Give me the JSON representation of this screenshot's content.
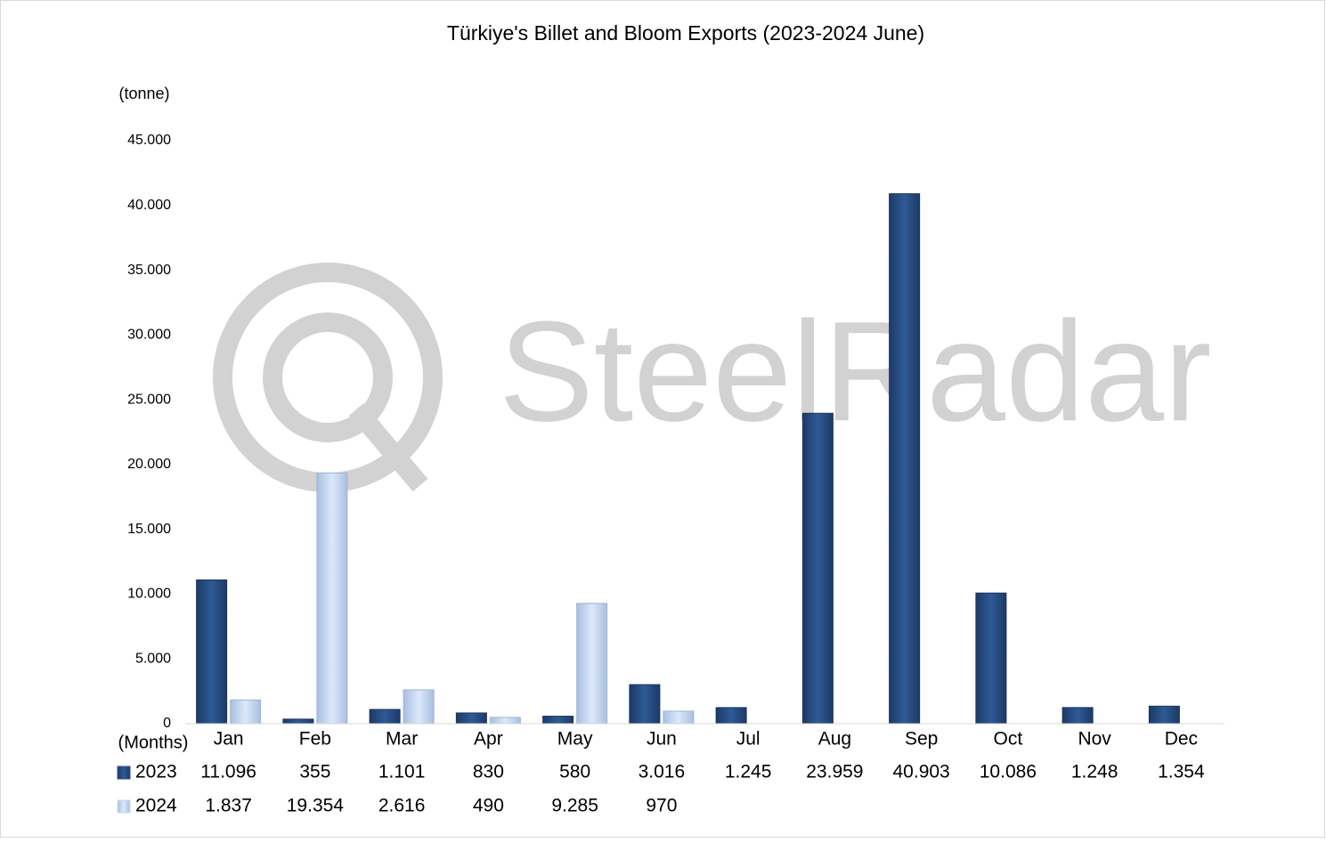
{
  "chart_data": {
    "type": "bar",
    "title": "Türkiye's Billet and Bloom Exports (2023-2024 June)",
    "y_label": "(tonne)",
    "x_label": "(Months)",
    "watermark": "SteelRadar",
    "categories": [
      "Jan",
      "Feb",
      "Mar",
      "Apr",
      "May",
      "Jun",
      "Jul",
      "Aug",
      "Sep",
      "Oct",
      "Nov",
      "Dec"
    ],
    "series": [
      {
        "name": "2023",
        "color": "#2a5189",
        "values": [
          11096,
          355,
          1101,
          830,
          580,
          3016,
          1245,
          23959,
          40903,
          10086,
          1248,
          1354
        ],
        "value_labels": [
          "11.096",
          "355",
          "1.101",
          "830",
          "580",
          "3.016",
          "1.245",
          "23.959",
          "40.903",
          "10.086",
          "1.248",
          "1.354"
        ]
      },
      {
        "name": "2024",
        "color": "#c9daf3",
        "values": [
          1837,
          19354,
          2616,
          490,
          9285,
          970,
          null,
          null,
          null,
          null,
          null,
          null
        ],
        "value_labels": [
          "1.837",
          "19.354",
          "2.616",
          "490",
          "9.285",
          "970",
          null,
          null,
          null,
          null,
          null,
          null
        ]
      }
    ],
    "ylim": [
      0,
      45000
    ],
    "yticks": [
      0,
      {
        "value": 5000,
        "label": "5.000"
      },
      {
        "value": 10000,
        "label": "10.000"
      },
      {
        "value": 15000,
        "label": "15.000"
      },
      {
        "value": 20000,
        "label": "20.000"
      },
      {
        "value": 25000,
        "label": "25.000"
      },
      {
        "value": 30000,
        "label": "30.000"
      },
      {
        "value": 35000,
        "label": "35.000"
      },
      {
        "value": 40000,
        "label": "40.000"
      },
      {
        "value": 45000,
        "label": "45.000"
      }
    ],
    "grid": false
  }
}
